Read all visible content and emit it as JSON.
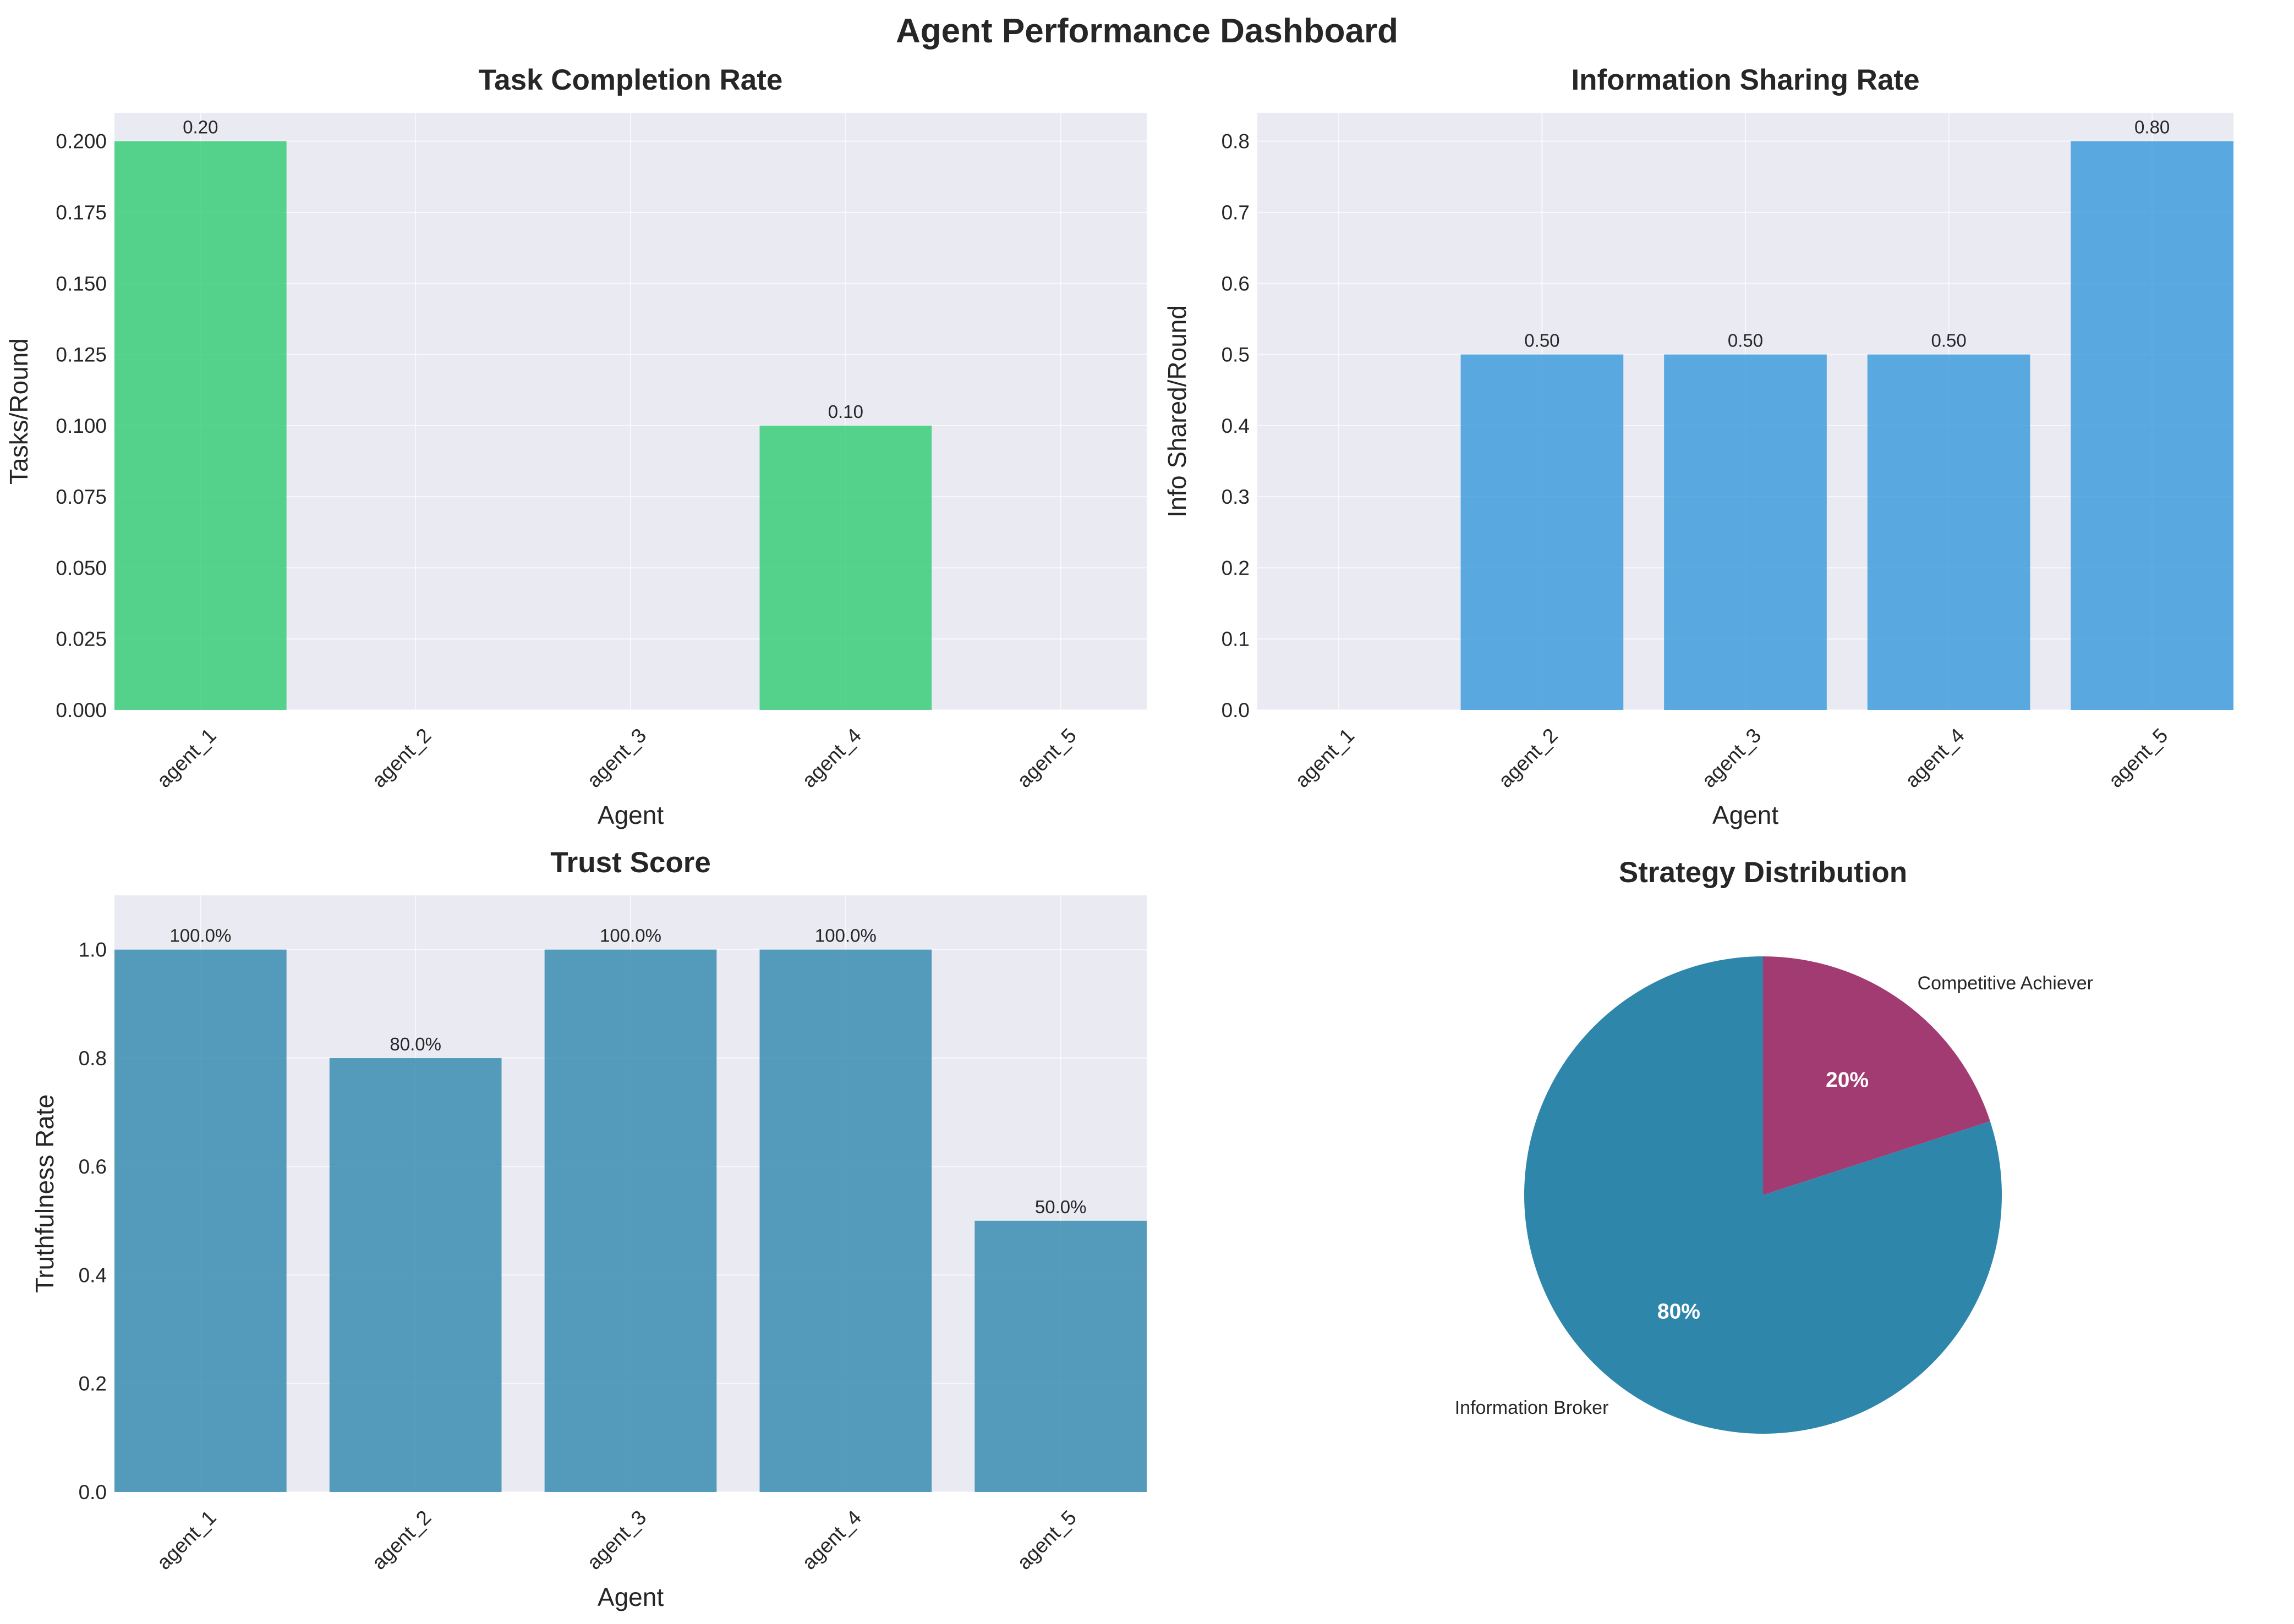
{
  "title": "Agent Performance Dashboard",
  "chart_data": [
    {
      "type": "bar",
      "title": "Task Completion Rate",
      "xlabel": "Agent",
      "ylabel": "Tasks/Round",
      "categories": [
        "agent_1",
        "agent_2",
        "agent_3",
        "agent_4",
        "agent_5"
      ],
      "values": [
        0.2,
        0,
        0,
        0.1,
        0
      ],
      "data_labels": [
        "0.20",
        "",
        "",
        "0.10",
        ""
      ],
      "ylim": [
        0,
        0.21
      ],
      "yticks": [
        0,
        0.025,
        0.05,
        0.075,
        0.1,
        0.125,
        0.15,
        0.175,
        0.2
      ],
      "ytick_labels": [
        "0.000",
        "0.025",
        "0.050",
        "0.075",
        "0.100",
        "0.125",
        "0.150",
        "0.175",
        "0.200"
      ],
      "color": "#2ecc71",
      "grid": true
    },
    {
      "type": "bar",
      "title": "Information Sharing Rate",
      "xlabel": "Agent",
      "ylabel": "Info Shared/Round",
      "categories": [
        "agent_1",
        "agent_2",
        "agent_3",
        "agent_4",
        "agent_5"
      ],
      "values": [
        0,
        0.5,
        0.5,
        0.5,
        0.8
      ],
      "data_labels": [
        "",
        "0.50",
        "0.50",
        "0.50",
        "0.80"
      ],
      "ylim": [
        0,
        0.84
      ],
      "yticks": [
        0,
        0.1,
        0.2,
        0.3,
        0.4,
        0.5,
        0.6,
        0.7,
        0.8
      ],
      "ytick_labels": [
        "0.0",
        "0.1",
        "0.2",
        "0.3",
        "0.4",
        "0.5",
        "0.6",
        "0.7",
        "0.8"
      ],
      "color": "#3498db",
      "grid": true
    },
    {
      "type": "bar",
      "title": "Trust Score",
      "xlabel": "Agent",
      "ylabel": "Truthfulness Rate",
      "categories": [
        "agent_1",
        "agent_2",
        "agent_3",
        "agent_4",
        "agent_5"
      ],
      "values": [
        1.0,
        0.8,
        1.0,
        1.0,
        0.5
      ],
      "data_labels": [
        "100.0%",
        "80.0%",
        "100.0%",
        "100.0%",
        "50.0%"
      ],
      "ylim": [
        0,
        1.1
      ],
      "yticks": [
        0,
        0.2,
        0.4,
        0.6,
        0.8,
        1.0
      ],
      "ytick_labels": [
        "0.0",
        "0.2",
        "0.4",
        "0.6",
        "0.8",
        "1.0"
      ],
      "color": "#2e86ab",
      "grid": true
    },
    {
      "type": "pie",
      "title": "Strategy Distribution",
      "labels": [
        "Competitive Achiever",
        "Information Broker"
      ],
      "values": [
        20,
        80
      ],
      "pct_labels": [
        "20%",
        "80%"
      ],
      "colors": [
        "#a23b72",
        "#2e86ab"
      ],
      "start_angle": 90,
      "direction": "clockwise"
    }
  ]
}
